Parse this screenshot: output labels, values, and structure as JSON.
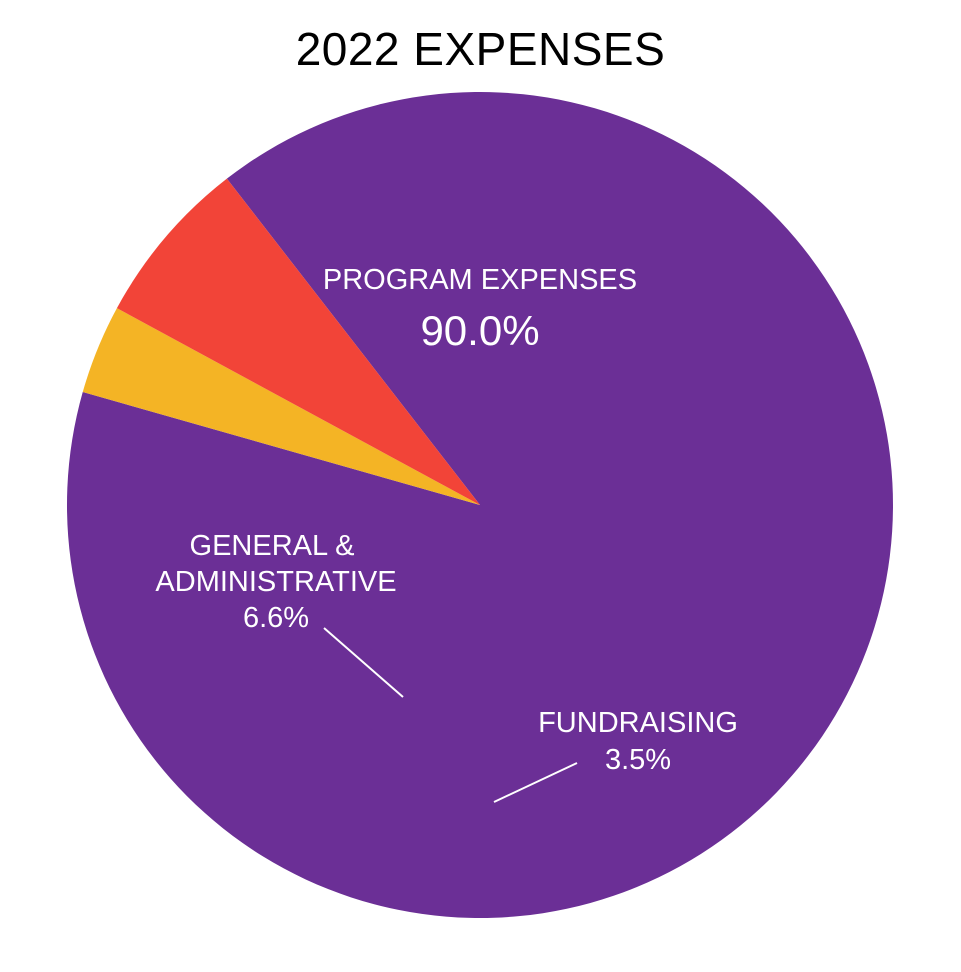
{
  "chart_data": {
    "type": "pie",
    "title": "2022 EXPENSES",
    "slices": [
      {
        "label": "PROGRAM EXPENSES",
        "value": 90.0,
        "value_label": "90.0%",
        "color": "#6b2f96"
      },
      {
        "label": "FUNDRAISING",
        "value": 3.5,
        "value_label": "3.5%",
        "color": "#f4b425"
      },
      {
        "label": "GENERAL & ADMINISTRATIVE",
        "label_lines": [
          "GENERAL &",
          "ADMINISTRATIVE"
        ],
        "value": 6.6,
        "value_label": "6.6%",
        "color": "#f24438"
      }
    ],
    "legend": "none",
    "label_color": "#ffffff",
    "leader_line_color": "#ffffff"
  }
}
